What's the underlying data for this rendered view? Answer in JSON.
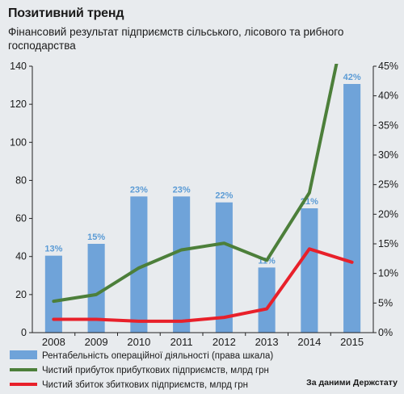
{
  "header": {
    "title": "Позитивний тренд",
    "subtitle": "Фінансовий результат підприємств сільського, лісового та рибного господарства"
  },
  "source": "За даними Держстату",
  "colors": {
    "bars": "#6fa3d9",
    "bar_labels": "#5b9bd5",
    "profit_line": "#4c7f3a",
    "loss_line": "#e8202a",
    "background": "#e8ebee"
  },
  "chart_data": {
    "type": "bar",
    "categories": [
      "2008",
      "2009",
      "2010",
      "2011",
      "2012",
      "2013",
      "2014",
      "2015"
    ],
    "y_left": {
      "ylim": [
        0,
        140
      ],
      "ticks": [
        0,
        20,
        40,
        60,
        80,
        100,
        120,
        140
      ]
    },
    "y_right": {
      "ylim": [
        0,
        45
      ],
      "ticks": [
        "0%",
        "5%",
        "10%",
        "15%",
        "20%",
        "25%",
        "30%",
        "35%",
        "40%",
        "45%"
      ]
    },
    "series": [
      {
        "name": "Рентабельність операційної діяльності (права шкала)",
        "type": "bar",
        "axis": "right",
        "values": [
          13,
          15,
          23,
          23,
          22,
          11,
          21,
          42
        ],
        "labels": [
          "13%",
          "15%",
          "23%",
          "23%",
          "22%",
          "11%",
          "21%",
          "42%"
        ]
      },
      {
        "name": "Чистий прибуток прибуткових підприємств, млрд грн",
        "type": "line",
        "axis": "left",
        "values": [
          16.5,
          20,
          34,
          43.5,
          47,
          38,
          73.5,
          180
        ]
      },
      {
        "name": "Чистий збиток збиткових підприємств, млрд грн",
        "type": "line",
        "axis": "left",
        "values": [
          7,
          7,
          6,
          6,
          8,
          12.5,
          44,
          37
        ]
      }
    ],
    "legend_placement": "bottom-left",
    "grid": false
  }
}
